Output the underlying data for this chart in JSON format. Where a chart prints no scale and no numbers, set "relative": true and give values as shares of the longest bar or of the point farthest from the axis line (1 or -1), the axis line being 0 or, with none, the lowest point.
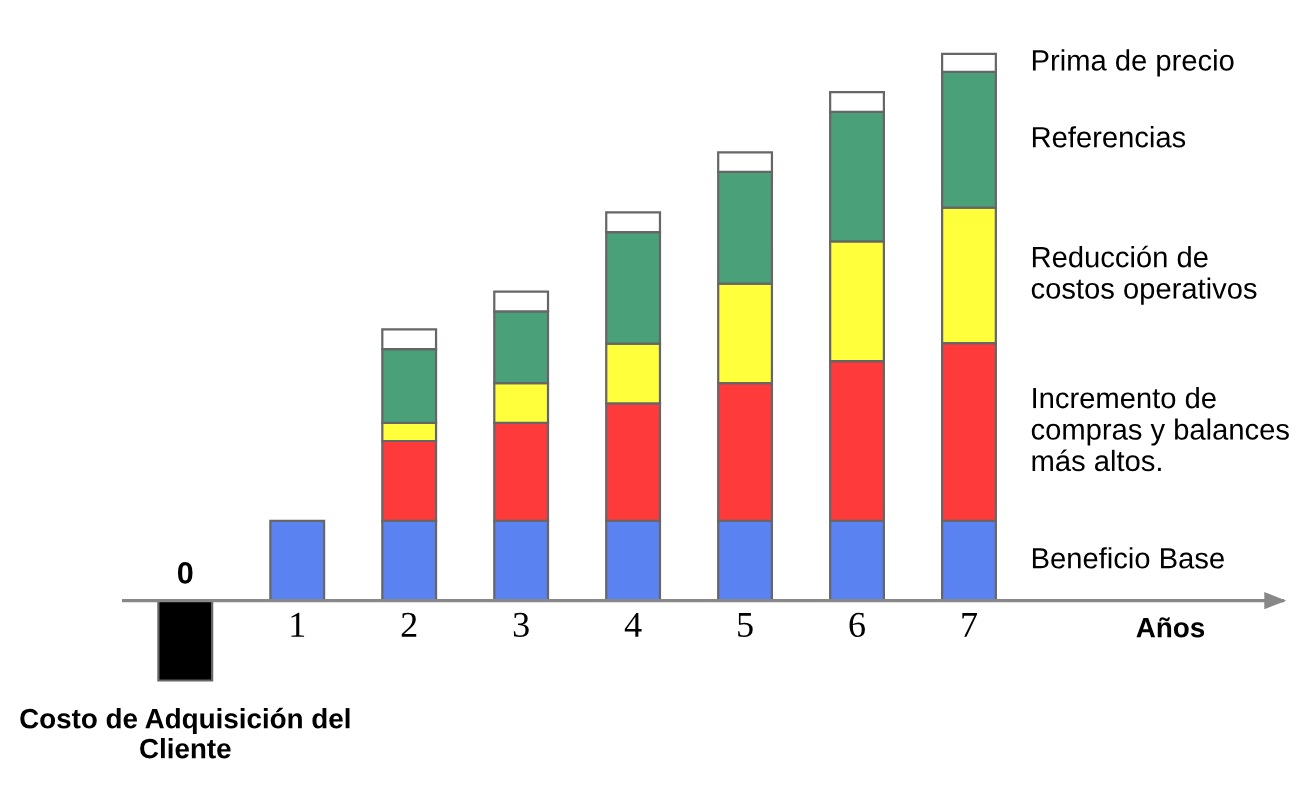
{
  "chart_data": {
    "type": "bar",
    "stacked": true,
    "relative": true,
    "xlabel": "Años",
    "categories": [
      "0",
      "1",
      "2",
      "3",
      "4",
      "5",
      "6",
      "7"
    ],
    "series": [
      {
        "name": "Costo de Adquisición del Cliente",
        "color": "#000000",
        "values": [
          -0.146,
          null,
          null,
          null,
          null,
          null,
          null,
          null
        ]
      },
      {
        "name": "Beneficio Base",
        "color": "#5a82f0",
        "values": [
          null,
          0.146,
          0.146,
          0.146,
          0.146,
          0.146,
          0.146,
          0.146
        ]
      },
      {
        "name": "Incremento de compras y balances más altos.",
        "color": "#ff3a3a",
        "values": [
          null,
          null,
          0.146,
          0.179,
          0.215,
          0.252,
          0.292,
          0.325
        ]
      },
      {
        "name": "Reducción de costos operativos",
        "color": "#ffff3c",
        "values": [
          null,
          null,
          0.033,
          0.073,
          0.109,
          0.182,
          0.219,
          0.248
        ]
      },
      {
        "name": "Referencias",
        "color": "#4aa078",
        "values": [
          null,
          null,
          0.135,
          0.131,
          0.204,
          0.204,
          0.237,
          0.248
        ]
      },
      {
        "name": "Prima de precio",
        "color": "#ffffff",
        "values": [
          null,
          null,
          0.036,
          0.036,
          0.036,
          0.036,
          0.036,
          0.033
        ]
      }
    ]
  }
}
